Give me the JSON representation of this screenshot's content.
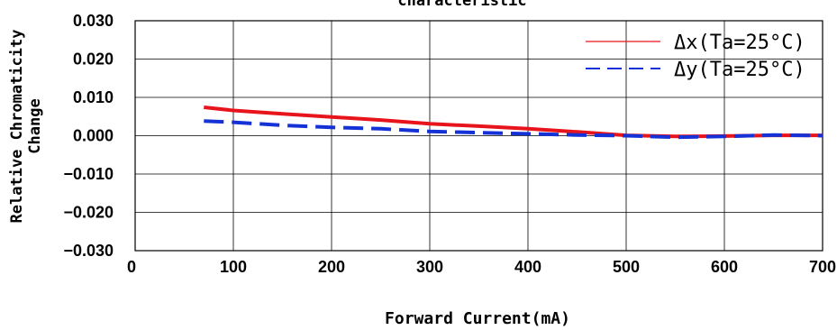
{
  "chart_data": {
    "type": "line",
    "title": "characteristic",
    "xlabel": "Forward Current(mA)",
    "ylabel_line1": "Relative Chromaticity",
    "ylabel_line2": "Change",
    "xlim": [
      0,
      700
    ],
    "ylim": [
      -0.03,
      0.03
    ],
    "x_ticks": [
      "0",
      "100",
      "200",
      "300",
      "400",
      "500",
      "600",
      "700"
    ],
    "y_ticks": [
      "0.030",
      "0.020",
      "0.010",
      "0.000",
      "−0.010",
      "−0.020",
      "−0.030"
    ],
    "grid": true,
    "legend_position": "top-right",
    "series": [
      {
        "name": "Δx(Ta=25°C)",
        "color": "#e8141b",
        "dash": "solid",
        "x": [
          70,
          100,
          150,
          200,
          250,
          300,
          350,
          400,
          450,
          500,
          550,
          600,
          650,
          700
        ],
        "y": [
          0.0074,
          0.0066,
          0.0057,
          0.0049,
          0.0041,
          0.0031,
          0.0025,
          0.0018,
          0.001,
          0.0001,
          -0.0002,
          -0.0001,
          0.0001,
          0.0001
        ]
      },
      {
        "name": "Δy(Ta=25°C)",
        "color": "#1432d6",
        "dash": "dashed",
        "x": [
          70,
          100,
          150,
          200,
          250,
          300,
          350,
          400,
          450,
          500,
          550,
          600,
          650,
          700
        ],
        "y": [
          0.0038,
          0.0035,
          0.0027,
          0.0022,
          0.0018,
          0.0011,
          0.0008,
          0.0005,
          0.0002,
          0.0,
          -0.0004,
          -0.0002,
          0.0002,
          0.0
        ]
      }
    ]
  }
}
